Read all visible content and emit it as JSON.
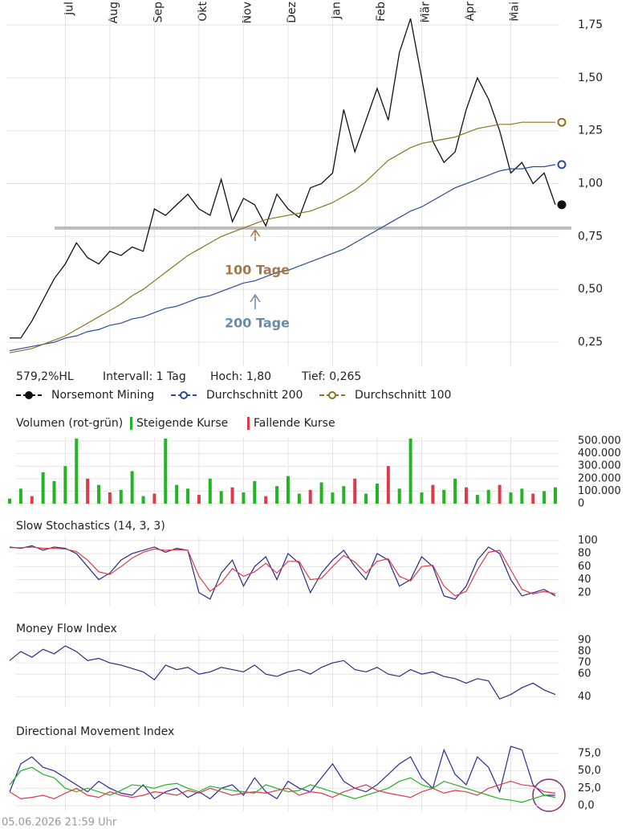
{
  "chart_data": [
    {
      "type": "line",
      "categories": [
        null,
        null,
        null,
        null,
        null,
        "Jul",
        null,
        null,
        null,
        "Aug",
        null,
        null,
        null,
        "Sep",
        null,
        null,
        null,
        "Okt",
        null,
        null,
        null,
        "Nov",
        null,
        null,
        null,
        "Dez",
        null,
        null,
        null,
        "Jan",
        null,
        null,
        null,
        "Feb",
        null,
        null,
        null,
        "Mär",
        null,
        null,
        null,
        "Apr",
        null,
        null,
        null,
        "Mai",
        null,
        null,
        null,
        null
      ],
      "series": [
        {
          "name": "Norsemont Mining",
          "color": "#111111",
          "values": [
            0.27,
            0.27,
            0.35,
            0.45,
            0.55,
            0.62,
            0.72,
            0.65,
            0.62,
            0.68,
            0.66,
            0.7,
            0.68,
            0.88,
            0.85,
            0.9,
            0.95,
            0.88,
            0.85,
            1.02,
            0.82,
            0.93,
            0.9,
            0.8,
            0.95,
            0.88,
            0.84,
            0.98,
            1.0,
            1.05,
            1.35,
            1.15,
            1.3,
            1.45,
            1.3,
            1.62,
            1.78,
            1.5,
            1.2,
            1.1,
            1.15,
            1.35,
            1.5,
            1.4,
            1.25,
            1.05,
            1.1,
            1.0,
            1.05,
            0.9
          ]
        },
        {
          "name": "Durchschnitt 200",
          "color": "#2b4a9c",
          "values": [
            0.21,
            0.22,
            0.23,
            0.24,
            0.25,
            0.27,
            0.28,
            0.3,
            0.31,
            0.33,
            0.34,
            0.36,
            0.37,
            0.39,
            0.41,
            0.42,
            0.44,
            0.46,
            0.47,
            0.49,
            0.51,
            0.53,
            0.54,
            0.56,
            0.58,
            0.59,
            0.61,
            0.63,
            0.65,
            0.67,
            0.69,
            0.72,
            0.75,
            0.78,
            0.81,
            0.84,
            0.87,
            0.89,
            0.92,
            0.95,
            0.98,
            1.0,
            1.02,
            1.04,
            1.06,
            1.07,
            1.07,
            1.08,
            1.08,
            1.09
          ]
        },
        {
          "name": "Durchschnitt 100",
          "color": "#8a7420",
          "values": [
            0.2,
            0.21,
            0.22,
            0.24,
            0.26,
            0.28,
            0.31,
            0.34,
            0.37,
            0.4,
            0.43,
            0.47,
            0.5,
            0.54,
            0.58,
            0.62,
            0.66,
            0.69,
            0.72,
            0.75,
            0.77,
            0.79,
            0.81,
            0.83,
            0.84,
            0.85,
            0.86,
            0.87,
            0.89,
            0.91,
            0.94,
            0.97,
            1.01,
            1.06,
            1.11,
            1.14,
            1.17,
            1.19,
            1.2,
            1.21,
            1.22,
            1.24,
            1.26,
            1.27,
            1.28,
            1.28,
            1.29,
            1.29,
            1.29,
            1.29
          ]
        }
      ],
      "ylim": [
        0.14,
        1.83
      ],
      "yticks": [
        {
          "value": 0.25,
          "label": "0,25"
        },
        {
          "value": 0.5,
          "label": "0,50"
        },
        {
          "value": 0.75,
          "label": "0,75"
        },
        {
          "value": 1.0,
          "label": "1,00"
        },
        {
          "value": 1.25,
          "label": "1,25"
        },
        {
          "value": 1.5,
          "label": "1,50"
        },
        {
          "value": 1.75,
          "label": "1,75"
        }
      ],
      "grid": true,
      "hline": 0.79,
      "annotations": [
        {
          "text": "100 Tage",
          "color": "#a0784a"
        },
        {
          "text": "200 Tage",
          "color": "#6a8aaa"
        }
      ],
      "stats": [
        "579,2%HL",
        "Intervall: 1 Tag",
        "Hoch: 1,80",
        "Tief: 0,265"
      ]
    },
    {
      "type": "bar",
      "title": "Volumen (rot-grün)",
      "series": [
        {
          "name": "Steigende Kurse",
          "color": "#22b422",
          "values": [
            40000,
            120000,
            null,
            250000,
            180000,
            300000,
            520000,
            null,
            150000,
            null,
            110000,
            260000,
            60000,
            null,
            520000,
            150000,
            120000,
            null,
            200000,
            100000,
            null,
            90000,
            180000,
            null,
            140000,
            220000,
            80000,
            null,
            170000,
            90000,
            140000,
            null,
            80000,
            160000,
            null,
            120000,
            520000,
            90000,
            null,
            110000,
            200000,
            null,
            70000,
            110000,
            null,
            90000,
            120000,
            null,
            100000,
            130000
          ]
        },
        {
          "name": "Fallende Kurse",
          "color": "#e03a4a",
          "values": [
            null,
            null,
            60000,
            null,
            null,
            null,
            null,
            200000,
            null,
            90000,
            null,
            null,
            null,
            80000,
            null,
            null,
            null,
            70000,
            null,
            null,
            130000,
            null,
            null,
            60000,
            null,
            null,
            null,
            110000,
            null,
            null,
            null,
            200000,
            null,
            null,
            300000,
            null,
            null,
            null,
            150000,
            null,
            null,
            130000,
            null,
            null,
            150000,
            null,
            null,
            80000,
            null,
            null
          ]
        }
      ],
      "ylim": [
        0,
        526000
      ],
      "yticks": [
        0,
        {
          "value": 100000,
          "label": "100.000"
        },
        {
          "value": 200000,
          "label": "200.000"
        },
        {
          "value": 300000,
          "label": "300.000"
        },
        {
          "value": 400000,
          "label": "400.000"
        },
        {
          "value": 500000,
          "label": "500.000"
        }
      ],
      "grid": true
    },
    {
      "type": "line",
      "title": "Slow Stochastics (14, 3, 3)",
      "series": [
        {
          "color": "#2a2a8a",
          "values": [
            90,
            88,
            92,
            85,
            90,
            88,
            80,
            60,
            40,
            50,
            70,
            80,
            85,
            90,
            82,
            88,
            85,
            20,
            10,
            50,
            70,
            30,
            60,
            75,
            40,
            80,
            65,
            20,
            50,
            70,
            85,
            60,
            40,
            80,
            70,
            30,
            40,
            75,
            60,
            15,
            10,
            30,
            70,
            90,
            80,
            40,
            15,
            20,
            25,
            15
          ]
        },
        {
          "color": "#e03a4a",
          "values": [
            89,
            89,
            90,
            88,
            88,
            87,
            83,
            70,
            52,
            48,
            60,
            73,
            82,
            87,
            85,
            86,
            85,
            45,
            22,
            35,
            57,
            45,
            52,
            65,
            50,
            68,
            68,
            40,
            42,
            60,
            77,
            67,
            50,
            68,
            72,
            45,
            38,
            60,
            62,
            30,
            15,
            22,
            55,
            82,
            85,
            55,
            25,
            18,
            22,
            18
          ]
        }
      ],
      "ylim": [
        0,
        106
      ],
      "yticks": [
        20,
        40,
        60,
        80,
        100
      ],
      "grid": true
    },
    {
      "type": "line",
      "title": "Money Flow Index",
      "series": [
        {
          "color": "#2a2a8a",
          "values": [
            72,
            80,
            75,
            82,
            78,
            85,
            80,
            72,
            74,
            70,
            68,
            65,
            62,
            55,
            68,
            64,
            66,
            60,
            62,
            66,
            64,
            62,
            68,
            60,
            58,
            62,
            64,
            60,
            66,
            70,
            72,
            64,
            62,
            66,
            60,
            58,
            64,
            60,
            62,
            58,
            56,
            52,
            56,
            54,
            38,
            42,
            48,
            52,
            46,
            42
          ]
        }
      ],
      "ylim": [
        31,
        95
      ],
      "yticks": [
        40,
        60,
        70,
        80,
        90
      ],
      "grid": true
    },
    {
      "type": "line",
      "title": "Directional Movement Index",
      "series": [
        {
          "color": "#2a2a9a",
          "values": [
            20,
            60,
            70,
            55,
            50,
            40,
            30,
            20,
            35,
            25,
            18,
            15,
            30,
            10,
            20,
            25,
            12,
            20,
            10,
            25,
            30,
            15,
            40,
            20,
            10,
            35,
            25,
            20,
            40,
            60,
            35,
            25,
            20,
            30,
            45,
            60,
            70,
            40,
            25,
            80,
            45,
            30,
            70,
            55,
            20,
            85,
            80,
            30,
            15,
            15
          ]
        },
        {
          "color": "#22b422",
          "values": [
            30,
            50,
            55,
            45,
            40,
            25,
            20,
            25,
            20,
            15,
            22,
            30,
            28,
            25,
            30,
            32,
            25,
            20,
            28,
            25,
            22,
            20,
            18,
            30,
            25,
            20,
            22,
            30,
            25,
            20,
            15,
            10,
            15,
            20,
            25,
            35,
            40,
            30,
            25,
            35,
            30,
            25,
            20,
            15,
            10,
            8,
            5,
            10,
            15,
            12
          ]
        },
        {
          "color": "#e03a4a",
          "values": [
            20,
            10,
            12,
            15,
            10,
            18,
            25,
            15,
            12,
            20,
            15,
            12,
            15,
            20,
            18,
            15,
            22,
            18,
            25,
            20,
            15,
            18,
            20,
            18,
            22,
            25,
            15,
            20,
            18,
            12,
            20,
            25,
            30,
            22,
            18,
            15,
            12,
            20,
            25,
            18,
            22,
            20,
            15,
            25,
            30,
            35,
            30,
            28,
            20,
            18
          ]
        }
      ],
      "ylim": [
        -8,
        84
      ],
      "yticks": [
        {
          "value": 0,
          "label": "0,0"
        },
        {
          "value": 25,
          "label": "25,0"
        },
        {
          "value": 50,
          "label": "50,0"
        },
        {
          "value": 75,
          "label": "75,0"
        }
      ],
      "grid": true
    }
  ],
  "timestamp": "05.06.2026 21:59 Uhr"
}
